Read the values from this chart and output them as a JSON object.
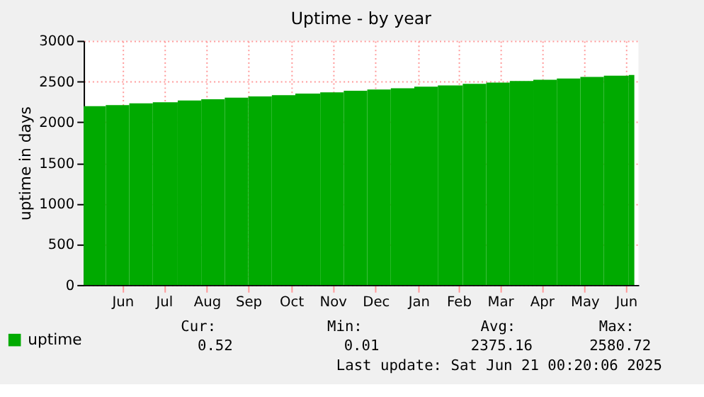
{
  "chart_data": {
    "type": "area",
    "title": "Uptime - by year",
    "ylabel": "uptime in days",
    "x": [
      "2024-05-19",
      "2024-06-04",
      "2024-06-21",
      "2024-07-08",
      "2024-07-26",
      "2024-08-12",
      "2024-08-29",
      "2024-09-15",
      "2024-10-02",
      "2024-10-19",
      "2024-11-06",
      "2024-11-23",
      "2024-12-10",
      "2024-12-27",
      "2025-01-13",
      "2025-01-30",
      "2025-02-17",
      "2025-03-06",
      "2025-03-23",
      "2025-04-09",
      "2025-04-26",
      "2025-05-13",
      "2025-05-30",
      "2025-06-17",
      "2025-06-21"
    ],
    "series": [
      {
        "name": "uptime",
        "color": "#00aa00",
        "values": [
          2195,
          2210,
          2230,
          2245,
          2265,
          2280,
          2300,
          2315,
          2330,
          2350,
          2365,
          2385,
          2400,
          2415,
          2435,
          2450,
          2470,
          2485,
          2505,
          2520,
          2535,
          2555,
          2570,
          2580,
          2580
        ]
      }
    ],
    "xlim": [
      "2024-05-19",
      "2025-06-24"
    ],
    "xticks": [
      {
        "value": "2024-06-16",
        "label": "Jun"
      },
      {
        "value": "2024-07-16",
        "label": "Jul"
      },
      {
        "value": "2024-08-16",
        "label": "Aug"
      },
      {
        "value": "2024-09-15",
        "label": "Sep"
      },
      {
        "value": "2024-10-16",
        "label": "Oct"
      },
      {
        "value": "2024-11-15",
        "label": "Nov"
      },
      {
        "value": "2024-12-16",
        "label": "Dec"
      },
      {
        "value": "2025-01-16",
        "label": "Jan"
      },
      {
        "value": "2025-02-14",
        "label": "Feb"
      },
      {
        "value": "2025-03-16",
        "label": "Mar"
      },
      {
        "value": "2025-04-15",
        "label": "Apr"
      },
      {
        "value": "2025-05-16",
        "label": "May"
      },
      {
        "value": "2025-06-15",
        "label": "Jun"
      }
    ],
    "ylim": [
      0,
      3000
    ],
    "yticks": [
      0,
      500,
      1000,
      1500,
      2000,
      2500,
      3000
    ],
    "grid": true,
    "legend": "bottom left",
    "annotations": [
      "Cur:",
      "Min:",
      "Avg:",
      "Max:",
      "0.52",
      "0.01",
      "2375.16",
      "2580.72",
      "Last update: Sat Jun 21 00:20:06 2025"
    ]
  }
}
